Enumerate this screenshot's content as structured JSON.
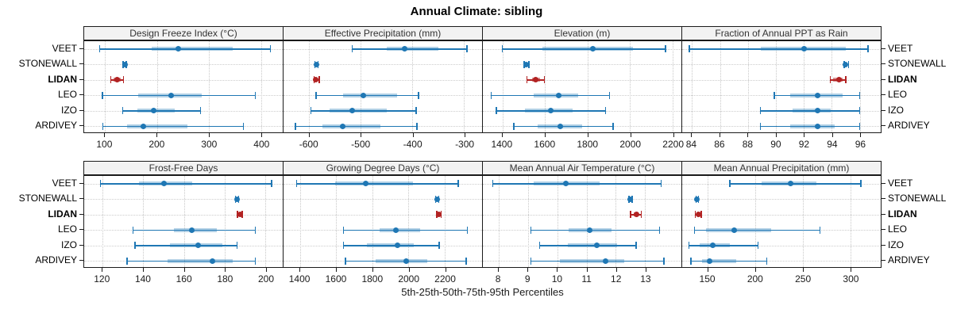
{
  "title": "Annual Climate: sibling",
  "xlabel": "5th-25th-50th-75th-95th Percentiles",
  "stations": [
    "VEET",
    "STONEWALL",
    "LIDAN",
    "LEO",
    "IZO",
    "ARDIVEY"
  ],
  "highlight_station": "LIDAN",
  "colors": {
    "series_blue": "#1f77b4",
    "highlight_red": "#b22222",
    "strip_background": "#f2f2f2",
    "panel_border": "#1a1a1a",
    "gridline": "#c8c8c8"
  },
  "chart_data": {
    "type": "scatter",
    "variant": "percentile interval plot (whisker 5th-95th, band 25th-75th, dot median)",
    "percentile_labels": [
      "5th",
      "25th",
      "50th",
      "75th",
      "95th"
    ],
    "grid": "dotted",
    "legend": "none",
    "layout": "2 rows x 4 columns of panels, shared station axis",
    "panels": [
      {
        "title": "Design Freeze Index (°C)",
        "axis": {
          "min": 60,
          "max": 442,
          "ticks": [
            100,
            200,
            300,
            400
          ]
        },
        "series": [
          {
            "station": "VEET",
            "percentiles": [
              90,
              190,
              241,
              345,
              418
            ]
          },
          {
            "station": "STONEWALL",
            "percentiles": [
              135,
              137,
              138,
              139,
              141
            ]
          },
          {
            "station": "LIDAN",
            "percentiles": [
              111,
              117,
              123,
              130,
              136
            ]
          },
          {
            "station": "LEO",
            "percentiles": [
              95,
              164,
              227,
              286,
              389
            ]
          },
          {
            "station": "IZO",
            "percentiles": [
              134,
              163,
              194,
              234,
              284
            ]
          },
          {
            "station": "ARDIVEY",
            "percentiles": [
              96,
              142,
              174,
              258,
              366
            ]
          }
        ]
      },
      {
        "title": "Effective Precipitation (mm)",
        "axis": {
          "min": -650,
          "max": -265,
          "ticks": [
            -600,
            -500,
            -400,
            -300
          ]
        },
        "series": [
          {
            "station": "VEET",
            "percentiles": [
              -517,
              -450,
              -415,
              -350,
              -294
            ]
          },
          {
            "station": "STONEWALL",
            "percentiles": [
              -589,
              -587,
              -586,
              -585,
              -583
            ]
          },
          {
            "station": "LIDAN",
            "percentiles": [
              -591,
              -589,
              -587,
              -584,
              -581
            ]
          },
          {
            "station": "LEO",
            "percentiles": [
              -587,
              -535,
              -495,
              -430,
              -388
            ]
          },
          {
            "station": "IZO",
            "percentiles": [
              -597,
              -560,
              -517,
              -450,
              -393
            ]
          },
          {
            "station": "ARDIVEY",
            "percentiles": [
              -627,
              -575,
              -536,
              -462,
              -391
            ]
          }
        ]
      },
      {
        "title": "Elevation (m)",
        "axis": {
          "min": 1308,
          "max": 2242,
          "ticks": [
            1400,
            1600,
            1800,
            2000,
            2200
          ]
        },
        "series": [
          {
            "station": "VEET",
            "percentiles": [
              1400,
              1590,
              1825,
              2015,
              2168
            ]
          },
          {
            "station": "STONEWALL",
            "percentiles": [
              1502,
              1509,
              1513,
              1517,
              1524
            ]
          },
          {
            "station": "LIDAN",
            "percentiles": [
              1515,
              1538,
              1556,
              1578,
              1598
            ]
          },
          {
            "station": "LEO",
            "percentiles": [
              1348,
              1548,
              1663,
              1756,
              1903
            ]
          },
          {
            "station": "IZO",
            "percentiles": [
              1371,
              1506,
              1628,
              1731,
              1885
            ]
          },
          {
            "station": "ARDIVEY",
            "percentiles": [
              1453,
              1566,
              1671,
              1775,
              1921
            ]
          }
        ]
      },
      {
        "title": "Fraction of Annual PPT as Rain",
        "axis": {
          "min": 83.3,
          "max": 97.5,
          "ticks": [
            84,
            86,
            88,
            90,
            92,
            94,
            96
          ]
        },
        "series": [
          {
            "station": "VEET",
            "percentiles": [
              83.8,
              88.9,
              92,
              95,
              96.6
            ]
          },
          {
            "station": "STONEWALL",
            "percentiles": [
              94.9,
              95,
              95,
              95.1,
              95.2
            ]
          },
          {
            "station": "LIDAN",
            "percentiles": [
              93.9,
              94.1,
              94.5,
              94.8,
              95
            ]
          },
          {
            "station": "LEO",
            "percentiles": [
              89.9,
              91,
              93,
              94.8,
              96
            ]
          },
          {
            "station": "IZO",
            "percentiles": [
              88.9,
              91.2,
              93,
              93.9,
              96
            ]
          },
          {
            "station": "ARDIVEY",
            "percentiles": [
              88.9,
              91,
              93,
              94.2,
              96
            ]
          }
        ]
      },
      {
        "title": "Frost-Free Days",
        "axis": {
          "min": 111,
          "max": 208.5,
          "ticks": [
            120,
            140,
            160,
            180,
            200
          ]
        },
        "series": [
          {
            "station": "VEET",
            "percentiles": [
              119,
              138,
              150,
              164,
              203
            ]
          },
          {
            "station": "STONEWALL",
            "percentiles": [
              185.2,
              185.6,
              186,
              186.3,
              186.8
            ]
          },
          {
            "station": "LIDAN",
            "percentiles": [
              186.3,
              187,
              187.5,
              188,
              188.7
            ]
          },
          {
            "station": "LEO",
            "percentiles": [
              135,
              155,
              164,
              176,
              195
            ]
          },
          {
            "station": "IZO",
            "percentiles": [
              136,
              153,
              167,
              179,
              186
            ]
          },
          {
            "station": "ARDIVEY",
            "percentiles": [
              132,
              152,
              174,
              184,
              195
            ]
          }
        ]
      },
      {
        "title": "Growing Degree Days (°C)",
        "axis": {
          "min": 1308,
          "max": 2407,
          "ticks": [
            1400,
            1600,
            1800,
            2000,
            2200
          ]
        },
        "series": [
          {
            "station": "VEET",
            "percentiles": [
              1380,
              1595,
              1765,
              2025,
              2275
            ]
          },
          {
            "station": "STONEWALL",
            "percentiles": [
              2150,
              2156,
              2159,
              2162,
              2168
            ]
          },
          {
            "station": "LIDAN",
            "percentiles": [
              2156,
              2163,
              2168,
              2174,
              2181
            ]
          },
          {
            "station": "LEO",
            "percentiles": [
              1640,
              1840,
              1930,
              2065,
              2325
            ]
          },
          {
            "station": "IZO",
            "percentiles": [
              1640,
              1770,
              1940,
              2030,
              2170
            ]
          },
          {
            "station": "ARDIVEY",
            "percentiles": [
              1650,
              1820,
              1985,
              2105,
              2320
            ]
          }
        ]
      },
      {
        "title": "Mean Annual Air Temperature (°C)",
        "axis": {
          "min": 7.46,
          "max": 14.24,
          "ticks": [
            8,
            9,
            10,
            11,
            12,
            13
          ]
        },
        "series": [
          {
            "station": "VEET",
            "percentiles": [
              7.8,
              9.2,
              10.3,
              11.45,
              13.55
            ]
          },
          {
            "station": "STONEWALL",
            "percentiles": [
              12.45,
              12.48,
              12.5,
              12.53,
              12.56
            ]
          },
          {
            "station": "LIDAN",
            "percentiles": [
              12.5,
              12.6,
              12.7,
              12.78,
              12.87
            ]
          },
          {
            "station": "LEO",
            "percentiles": [
              9.1,
              10.4,
              11.1,
              11.85,
              13.5
            ]
          },
          {
            "station": "IZO",
            "percentiles": [
              9.4,
              10.35,
              11.35,
              12.05,
              12.7
            ]
          },
          {
            "station": "ARDIVEY",
            "percentiles": [
              9.1,
              10.1,
              11.65,
              12.3,
              13.65
            ]
          }
        ]
      },
      {
        "title": "Mean Annual Precipitation (mm)",
        "axis": {
          "min": 123,
          "max": 332,
          "ticks": [
            150,
            200,
            250,
            300
          ]
        },
        "series": [
          {
            "station": "VEET",
            "percentiles": [
              173,
              207,
              237,
              264,
              311
            ]
          },
          {
            "station": "STONEWALL",
            "percentiles": [
              137.5,
              138,
              138.5,
              139,
              140
            ]
          },
          {
            "station": "LIDAN",
            "percentiles": [
              137,
              139,
              140,
              141.5,
              143
            ]
          },
          {
            "station": "LEO",
            "percentiles": [
              136,
              148,
              178,
              217,
              268
            ]
          },
          {
            "station": "IZO",
            "percentiles": [
              130,
              141,
              155,
              173,
              203
            ]
          },
          {
            "station": "ARDIVEY",
            "percentiles": [
              132,
              144,
              152,
              180,
              212
            ]
          }
        ]
      }
    ]
  }
}
